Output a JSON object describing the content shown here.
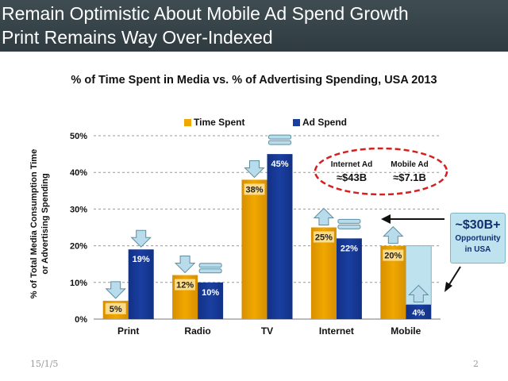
{
  "slide": {
    "title_line1": "Remain Optimistic About Mobile Ad Spend Growth",
    "title_line2": "Print Remains Way Over-Indexed",
    "date": "15/1/5",
    "page_number": "2"
  },
  "colors": {
    "time_spent": "#f0a800",
    "ad_spend": "#1a3fa0",
    "opportunity": "#bfe3ee",
    "arrow_fill": "#b9dcec",
    "ellipse": "#d42020"
  },
  "annotations": {
    "internet_ad_label": "Internet Ad",
    "internet_ad_value": "≈$43B",
    "mobile_ad_label": "Mobile Ad",
    "mobile_ad_value": "≈$7.1B",
    "opportunity_big": "~$30B+",
    "opportunity_line1": "Opportunity",
    "opportunity_line2": "in USA"
  },
  "chart_data": {
    "type": "bar",
    "title": "% of Time Spent in Media vs. % of Advertising Spending, USA 2013",
    "ylabel": "% of Total Media Consumption Time or Advertising Spending",
    "ylabel_line1": "% of Total Media Consumption Time",
    "ylabel_line2": "or Advertising Spending",
    "xlabel": "",
    "ylim": [
      0,
      50
    ],
    "yticks": [
      0,
      10,
      20,
      30,
      40,
      50
    ],
    "ytick_labels": [
      "0%",
      "10%",
      "20%",
      "30%",
      "40%",
      "50%"
    ],
    "grid": true,
    "legend_position": "top",
    "categories": [
      "Print",
      "Radio",
      "TV",
      "Internet",
      "Mobile"
    ],
    "series": [
      {
        "name": "Time Spent",
        "values": [
          5,
          12,
          38,
          25,
          20
        ],
        "labels": [
          "5%",
          "12%",
          "38%",
          "25%",
          "20%"
        ]
      },
      {
        "name": "Ad Spend",
        "values": [
          19,
          10,
          45,
          22,
          4
        ],
        "labels": [
          "19%",
          "10%",
          "45%",
          "22%",
          "4%"
        ]
      }
    ],
    "trend_markers": {
      "Time Spent": [
        "down",
        "down",
        "down",
        "up",
        "up"
      ],
      "Ad Spend": [
        "down",
        "flat",
        "flat",
        "flat",
        "up"
      ]
    }
  }
}
